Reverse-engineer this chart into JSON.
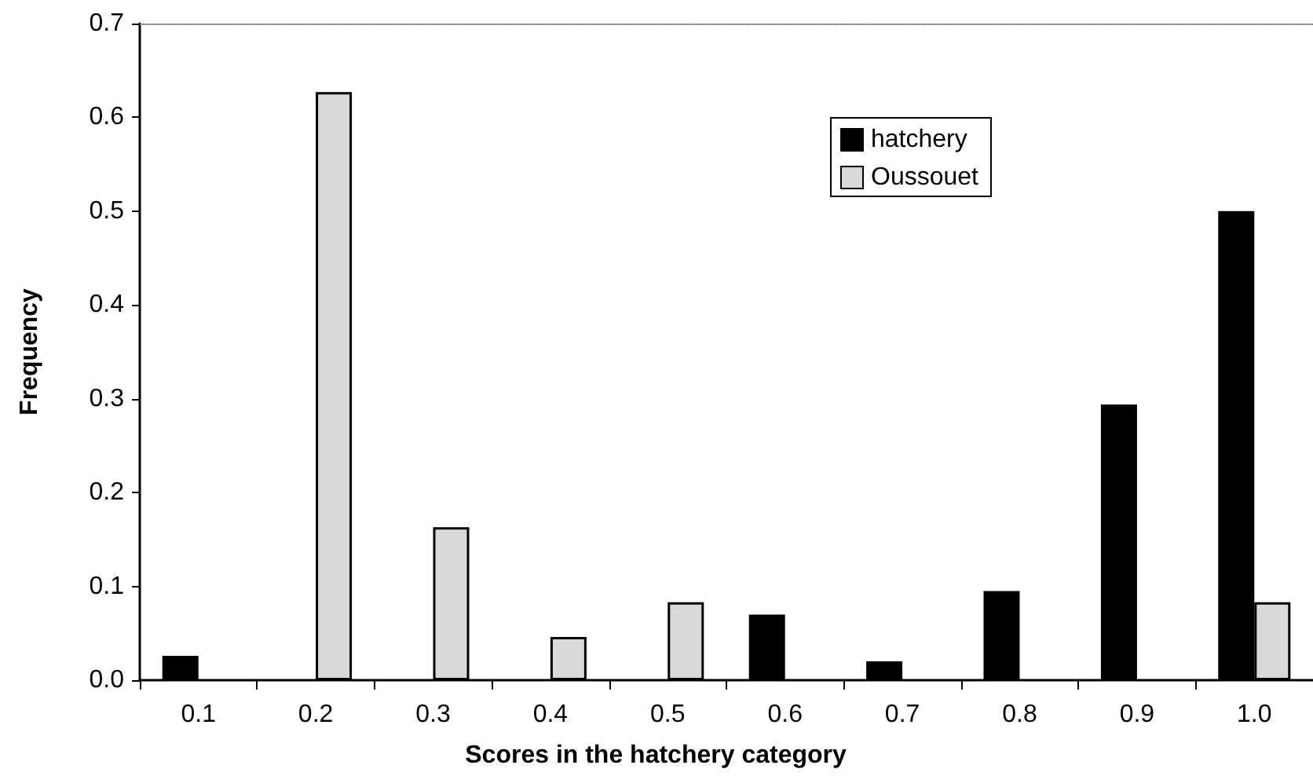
{
  "chart_data": {
    "type": "bar",
    "xlabel": "Scores in the hatchery category",
    "ylabel": "Frequency",
    "categories": [
      "0.1",
      "0.2",
      "0.3",
      "0.4",
      "0.5",
      "0.6",
      "0.7",
      "0.8",
      "0.9",
      "1.0"
    ],
    "series": [
      {
        "name": "hatchery",
        "color": "#000000",
        "values": [
          0.026,
          0,
          0,
          0,
          0,
          0.07,
          0.02,
          0.095,
          0.294,
          0.5
        ]
      },
      {
        "name": "Oussouet",
        "color": "#d9d9d9",
        "values": [
          0,
          0.627,
          0.163,
          0.046,
          0.083,
          0,
          0,
          0,
          0,
          0.083
        ]
      }
    ],
    "ylim": [
      0,
      0.7
    ],
    "yticks": [
      {
        "value": 0,
        "label": "0.0"
      },
      0.1,
      0.2,
      0.3,
      0.4,
      0.5,
      0.6,
      0.7
    ],
    "grid": false,
    "legend": "top right"
  }
}
